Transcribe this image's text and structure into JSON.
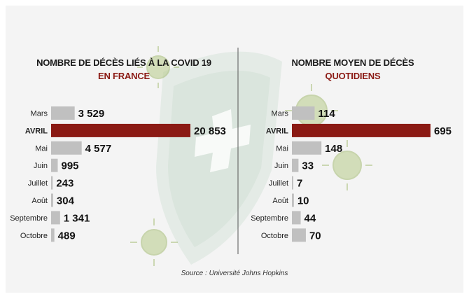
{
  "source": "Source : Université Johns Hopkins",
  "colors": {
    "highlight": "#8b1a14",
    "bar": "#c0c0c0",
    "background": "#f4f4f4"
  },
  "chart_data": [
    {
      "type": "bar",
      "orientation": "horizontal",
      "title": "NOMBRE DE DÉCÈS LIÉS À LA COVID 19",
      "subtitle": "EN FRANCE",
      "categories": [
        "Mars",
        "AVRIL",
        "Mai",
        "Juin",
        "Juillet",
        "Août",
        "Septembre",
        "Octobre"
      ],
      "values": [
        3529,
        20853,
        4577,
        995,
        243,
        304,
        1341,
        489
      ],
      "value_labels": [
        "3 529",
        "20 853",
        "4 577",
        "995",
        "243",
        "304",
        "1 341",
        "489"
      ],
      "highlight": "AVRIL",
      "xlim": [
        0,
        20853
      ],
      "grid": false,
      "legend": "none"
    },
    {
      "type": "bar",
      "orientation": "horizontal",
      "title": "NOMBRE MOYEN DE DÉCÈS",
      "subtitle": "QUOTIDIENS",
      "categories": [
        "Mars",
        "AVRIL",
        "Mai",
        "Juin",
        "Juillet",
        "Août",
        "Septembre",
        "Octobre"
      ],
      "values": [
        114,
        695,
        148,
        33,
        7,
        10,
        44,
        70
      ],
      "value_labels": [
        "114",
        "695",
        "148",
        "33",
        "7",
        "10",
        "44",
        "70"
      ],
      "highlight": "AVRIL",
      "xlim": [
        0,
        695
      ],
      "grid": false,
      "legend": "none"
    }
  ]
}
